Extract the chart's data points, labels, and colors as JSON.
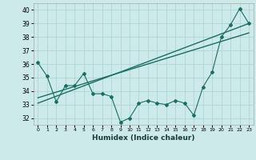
{
  "xlabel": "Humidex (Indice chaleur)",
  "ylabel": "",
  "bg_color": "#cdeaea",
  "grid_color": "#b0d4d4",
  "line_color": "#1a6e64",
  "xlim": [
    -0.5,
    23.5
  ],
  "ylim": [
    31.5,
    40.5
  ],
  "xticks": [
    0,
    1,
    2,
    3,
    4,
    5,
    6,
    7,
    8,
    9,
    10,
    11,
    12,
    13,
    14,
    15,
    16,
    17,
    18,
    19,
    20,
    21,
    22,
    23
  ],
  "yticks": [
    32,
    33,
    34,
    35,
    36,
    37,
    38,
    39,
    40
  ],
  "line1_x": [
    0,
    1,
    2,
    3,
    4,
    5,
    6,
    7,
    8,
    9,
    10,
    11,
    12,
    13,
    14,
    15,
    16,
    17,
    18,
    19,
    20,
    21,
    22,
    23
  ],
  "line1_y": [
    36.1,
    35.1,
    33.2,
    34.4,
    34.4,
    35.3,
    33.8,
    33.8,
    33.6,
    31.7,
    32.0,
    33.1,
    33.3,
    33.1,
    33.0,
    33.3,
    33.1,
    32.2,
    34.3,
    35.4,
    38.0,
    38.9,
    40.1,
    39.0
  ],
  "line2_x": [
    0,
    23
  ],
  "line2_y": [
    33.1,
    39.0
  ],
  "line3_x": [
    0,
    23
  ],
  "line3_y": [
    33.5,
    38.3
  ]
}
